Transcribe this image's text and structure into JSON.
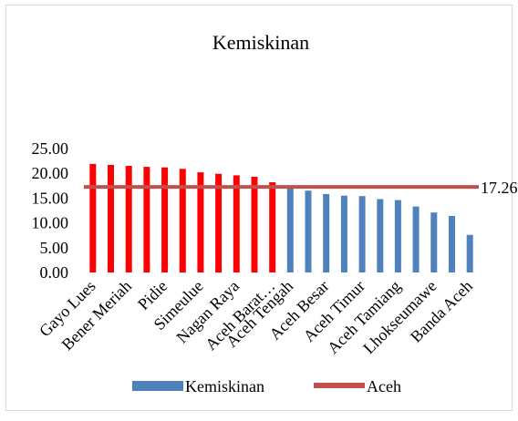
{
  "chart_data": {
    "type": "bar",
    "title": "Kemiskinan",
    "ylim": [
      0,
      25
    ],
    "yticks": [
      "0.00",
      "5.00",
      "10.00",
      "15.00",
      "20.00",
      "25.00"
    ],
    "categories": [
      "Gayo Lues",
      "",
      "Bener Meriah",
      "",
      "Pidie",
      "",
      "Simeulue",
      "",
      "Nagan Raya",
      "",
      "Aceh Barat…",
      "Aceh Tengah",
      "",
      "Aceh Besar",
      "",
      "Aceh Timur",
      "",
      "Aceh Tamiang",
      "",
      "Lhokseumawe",
      "",
      "Banda Aceh"
    ],
    "values": [
      21.9,
      21.7,
      21.5,
      21.3,
      21.2,
      20.9,
      20.2,
      19.9,
      19.6,
      19.3,
      18.2,
      17.1,
      16.5,
      15.8,
      15.5,
      15.4,
      14.8,
      14.6,
      13.3,
      12.1,
      11.4,
      7.6
    ],
    "highlight_count": 11,
    "colors": {
      "above": "#ff0000",
      "below": "#4f81bd",
      "reference_line": "#c0504d"
    },
    "reference": {
      "name": "Aceh",
      "value": 17.26,
      "label": "17.26"
    },
    "legend": {
      "position": "bottom",
      "entries": [
        "Kemiskinan",
        "Aceh"
      ]
    },
    "grid": false
  }
}
